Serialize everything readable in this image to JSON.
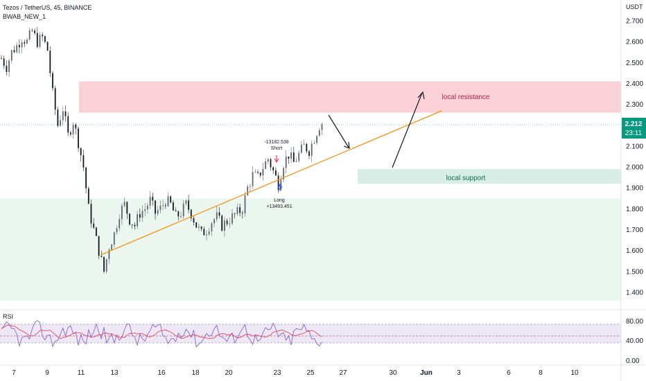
{
  "header": {
    "symbol_line": "Tezos / TetherUS, 45, BINANCE",
    "indicator_name": "BWAB_NEW_1"
  },
  "chart_data": {
    "type": "candlestick",
    "currency": "USDT",
    "y_ticks": [
      "2.700",
      "2.600",
      "2.500",
      "2.400",
      "2.300",
      "2.100",
      "2.000",
      "1.900",
      "1.800",
      "1.700",
      "1.600",
      "1.500",
      "1.400"
    ],
    "ylim": [
      1.36,
      2.76
    ],
    "x_ticks": [
      "7",
      "9",
      "11",
      "13",
      "16",
      "18",
      "20",
      "23",
      "25",
      "27",
      "30",
      "Jun",
      "3",
      "6",
      "8",
      "10"
    ],
    "last_price": "2.212",
    "countdown": "23:11",
    "price_path": [
      [
        0,
        2.52
      ],
      [
        2,
        2.48
      ],
      [
        4,
        2.55
      ],
      [
        6,
        2.58
      ],
      [
        8,
        2.62
      ],
      [
        10,
        2.6
      ],
      [
        12,
        2.65
      ],
      [
        14,
        2.6
      ],
      [
        16,
        2.62
      ],
      [
        18,
        2.56
      ],
      [
        20,
        2.35
      ],
      [
        22,
        2.2
      ],
      [
        24,
        2.28
      ],
      [
        26,
        2.15
      ],
      [
        28,
        2.22
      ],
      [
        30,
        2.12
      ],
      [
        32,
        2.0
      ],
      [
        34,
        1.8
      ],
      [
        36,
        1.7
      ],
      [
        38,
        1.6
      ],
      [
        40,
        1.5
      ],
      [
        42,
        1.62
      ],
      [
        44,
        1.68
      ],
      [
        46,
        1.78
      ],
      [
        48,
        1.82
      ],
      [
        50,
        1.75
      ],
      [
        52,
        1.72
      ],
      [
        54,
        1.78
      ],
      [
        56,
        1.8
      ],
      [
        58,
        1.84
      ],
      [
        60,
        1.78
      ],
      [
        62,
        1.8
      ],
      [
        64,
        1.84
      ],
      [
        66,
        1.82
      ],
      [
        68,
        1.76
      ],
      [
        70,
        1.78
      ],
      [
        72,
        1.82
      ],
      [
        74,
        1.78
      ],
      [
        76,
        1.72
      ],
      [
        78,
        1.68
      ],
      [
        80,
        1.7
      ],
      [
        82,
        1.74
      ],
      [
        84,
        1.76
      ],
      [
        86,
        1.72
      ],
      [
        88,
        1.74
      ],
      [
        90,
        1.76
      ],
      [
        92,
        1.78
      ],
      [
        94,
        1.8
      ],
      [
        96,
        1.9
      ],
      [
        98,
        1.96
      ],
      [
        100,
        1.95
      ],
      [
        102,
        2.0
      ],
      [
        104,
        2.04
      ],
      [
        106,
        1.98
      ],
      [
        108,
        1.92
      ],
      [
        110,
        2.02
      ],
      [
        112,
        2.06
      ],
      [
        114,
        2.02
      ],
      [
        116,
        2.06
      ],
      [
        118,
        2.1
      ],
      [
        120,
        2.08
      ],
      [
        122,
        2.14
      ],
      [
        124,
        2.2
      ],
      [
        126,
        2.22
      ]
    ],
    "orange_trendline": [
      [
        18,
        1.58
      ],
      [
        160,
        2.27
      ]
    ],
    "zones": [
      {
        "label": "local resistance",
        "top": 2.41,
        "bottom": 2.26,
        "color": "#f7c5cc",
        "text_color": "#b4204c"
      },
      {
        "label": "local support",
        "top": 1.99,
        "bottom": 1.92,
        "color": "#cdeae1",
        "text_color": "#0b6a4a"
      },
      {
        "label": "",
        "top": 1.85,
        "bottom": 1.36,
        "color": "#e8f5ec",
        "text_color": ""
      }
    ],
    "signals": {
      "short_value": "-13182.538",
      "short_label": "Short",
      "long_label": "Long",
      "long_value": "+13493.451"
    },
    "rsi": {
      "label": "RSI",
      "ticks": [
        "80.00",
        "40.00",
        "0.00"
      ],
      "band": [
        40,
        80
      ]
    }
  }
}
